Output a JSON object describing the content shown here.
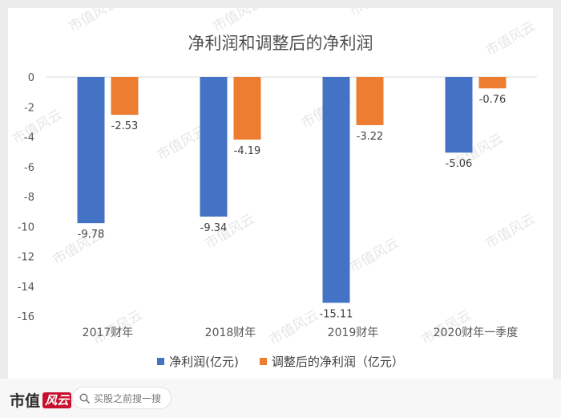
{
  "chart_data": {
    "type": "bar",
    "title": "净利润和调整后的净利润",
    "categories": [
      "2017财年",
      "2018财年",
      "2019财年",
      "2020财年一季度"
    ],
    "series": [
      {
        "name": "净利润(亿元)",
        "color": "#4472c4",
        "values": [
          -9.78,
          -9.34,
          -15.11,
          -5.06
        ],
        "labels": [
          "-9.78",
          "-9.34",
          "-15.11",
          "-5.06"
        ]
      },
      {
        "name": "调整后的净利润（亿元）",
        "color": "#ed7d31",
        "values": [
          -2.53,
          -4.19,
          -3.22,
          -0.76
        ],
        "labels": [
          "-2.53",
          "-4.19",
          "-3.22",
          "-0.76"
        ]
      }
    ],
    "yticks": [
      0,
      -2,
      -4,
      -6,
      -8,
      -10,
      -12,
      -14,
      -16
    ],
    "ylim": [
      -16,
      0
    ],
    "xlabel": "",
    "ylabel": ""
  },
  "watermark": "市值风云",
  "footer": {
    "brand": "市值",
    "brand_mark": "风云",
    "search_placeholder": "买股之前搜一搜"
  }
}
